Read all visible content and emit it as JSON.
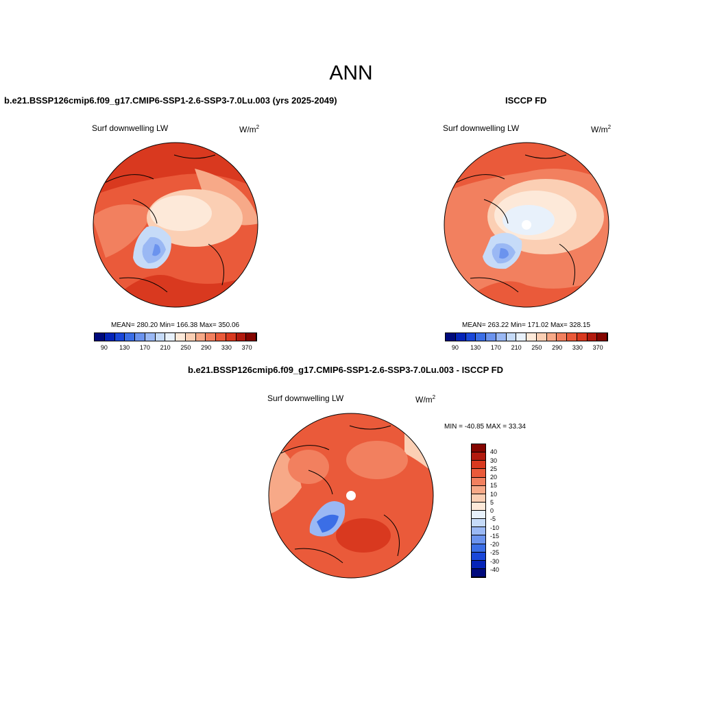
{
  "header": {
    "title": "ANN"
  },
  "panels": {
    "left": {
      "title": "b.e21.BSSP126cmip6.f09_g17.CMIP6-SSP1-2.6-SSP3-7.0Lu.003 (yrs 2025-2049)",
      "variable": "Surf downwelling LW",
      "units": "W/m",
      "units_sup": "2",
      "stats": "MEAN= 280.20   Min= 166.38   Max= 350.06"
    },
    "right": {
      "title": "ISCCP FD",
      "variable": "Surf downwelling LW",
      "units": "W/m",
      "units_sup": "2",
      "stats": "MEAN= 263.22   Min= 171.02   Max= 328.15"
    },
    "diff": {
      "title": "b.e21.BSSP126cmip6.f09_g17.CMIP6-SSP1-2.6-SSP3-7.0Lu.003 - ISCCP FD",
      "variable": "Surf downwelling LW",
      "units": "W/m",
      "units_sup": "2",
      "stats": "MIN = -40.85  MAX =  33.34"
    }
  },
  "colorbar_abs": {
    "colors": [
      "#000a7c",
      "#0524b8",
      "#1a47d9",
      "#3b6ee6",
      "#6b93ee",
      "#9ab8f4",
      "#c6dbf8",
      "#e8f1fb",
      "#fde9d9",
      "#fbcfb4",
      "#f7a988",
      "#f2805f",
      "#ea5a3a",
      "#d9391f",
      "#b21a0e",
      "#840500"
    ],
    "ticks": [
      "90",
      "130",
      "170",
      "210",
      "250",
      "290",
      "330",
      "370"
    ]
  },
  "colorbar_diff": {
    "colors": [
      "#840500",
      "#b21a0e",
      "#d9391f",
      "#ea5a3a",
      "#f2805f",
      "#f7a988",
      "#fbcfb4",
      "#fde9d9",
      "#e8f1fb",
      "#c6dbf8",
      "#9ab8f4",
      "#6b93ee",
      "#3b6ee6",
      "#1a47d9",
      "#0524b8",
      "#000a7c"
    ],
    "ticks": [
      "40",
      "30",
      "25",
      "20",
      "15",
      "10",
      "5",
      "0",
      "-5",
      "-10",
      "-15",
      "-20",
      "-25",
      "-30",
      "-40"
    ]
  }
}
